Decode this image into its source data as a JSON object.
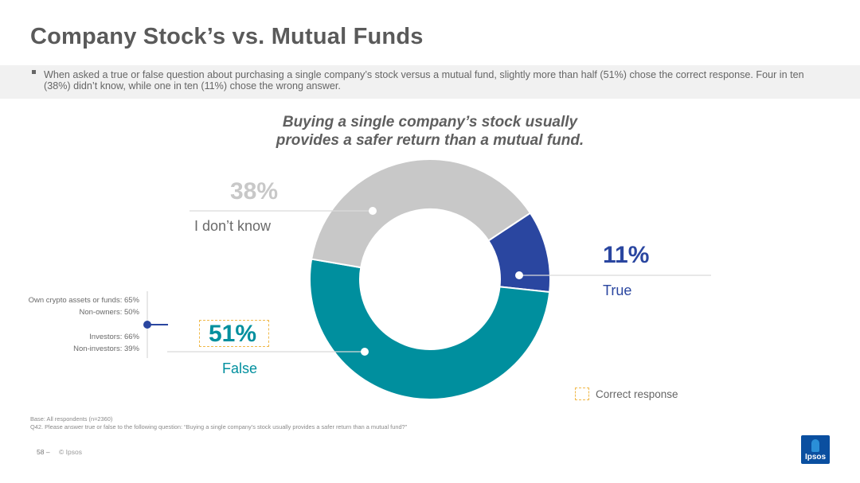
{
  "page": {
    "title": "Company Stock’s vs. Mutual Funds",
    "summary": "When asked a true or false question about purchasing a single company’s stock versus a mutual fund, slightly more than half (51%) chose the correct response.  Four in ten (38%) didn’t know, while one in ten (11%) chose the wrong answer.",
    "page_number": "58 –",
    "copyright": "© Ipsos",
    "logo_text": "Ipsos"
  },
  "chart_data": {
    "type": "pie",
    "title_line1": "Buying a single company’s stock usually",
    "title_line2": "provides a safer return than a mutual fund.",
    "slices": [
      {
        "label": "True",
        "value": 11,
        "display": "11%",
        "color": "#2a46a0"
      },
      {
        "label": "False",
        "value": 51,
        "display": "51%",
        "color": "#008f9e",
        "correct": true
      },
      {
        "label": "I don’t know",
        "value": 38,
        "display": "38%",
        "color": "#c8c8c8"
      }
    ],
    "legend": {
      "label": "Correct response",
      "style": "dashed-box",
      "color": "#f0b94a"
    }
  },
  "side_stats": [
    "Own crypto assets or funds: 65%",
    "Non-owners: 50%",
    "Investors: 66%",
    "Non-investors: 39%"
  ],
  "footnotes": [
    "Base: All respondents (n=2360)",
    "Q42. Please answer true or false to the following question: “Buying a single company’s stock usually provides a safer return than a mutual fund?”"
  ],
  "colors": {
    "true": "#2a46a0",
    "false": "#008f9e",
    "unknown": "#c8c8c8",
    "title": "#5a5a5a",
    "connector": "#2a46a0"
  }
}
